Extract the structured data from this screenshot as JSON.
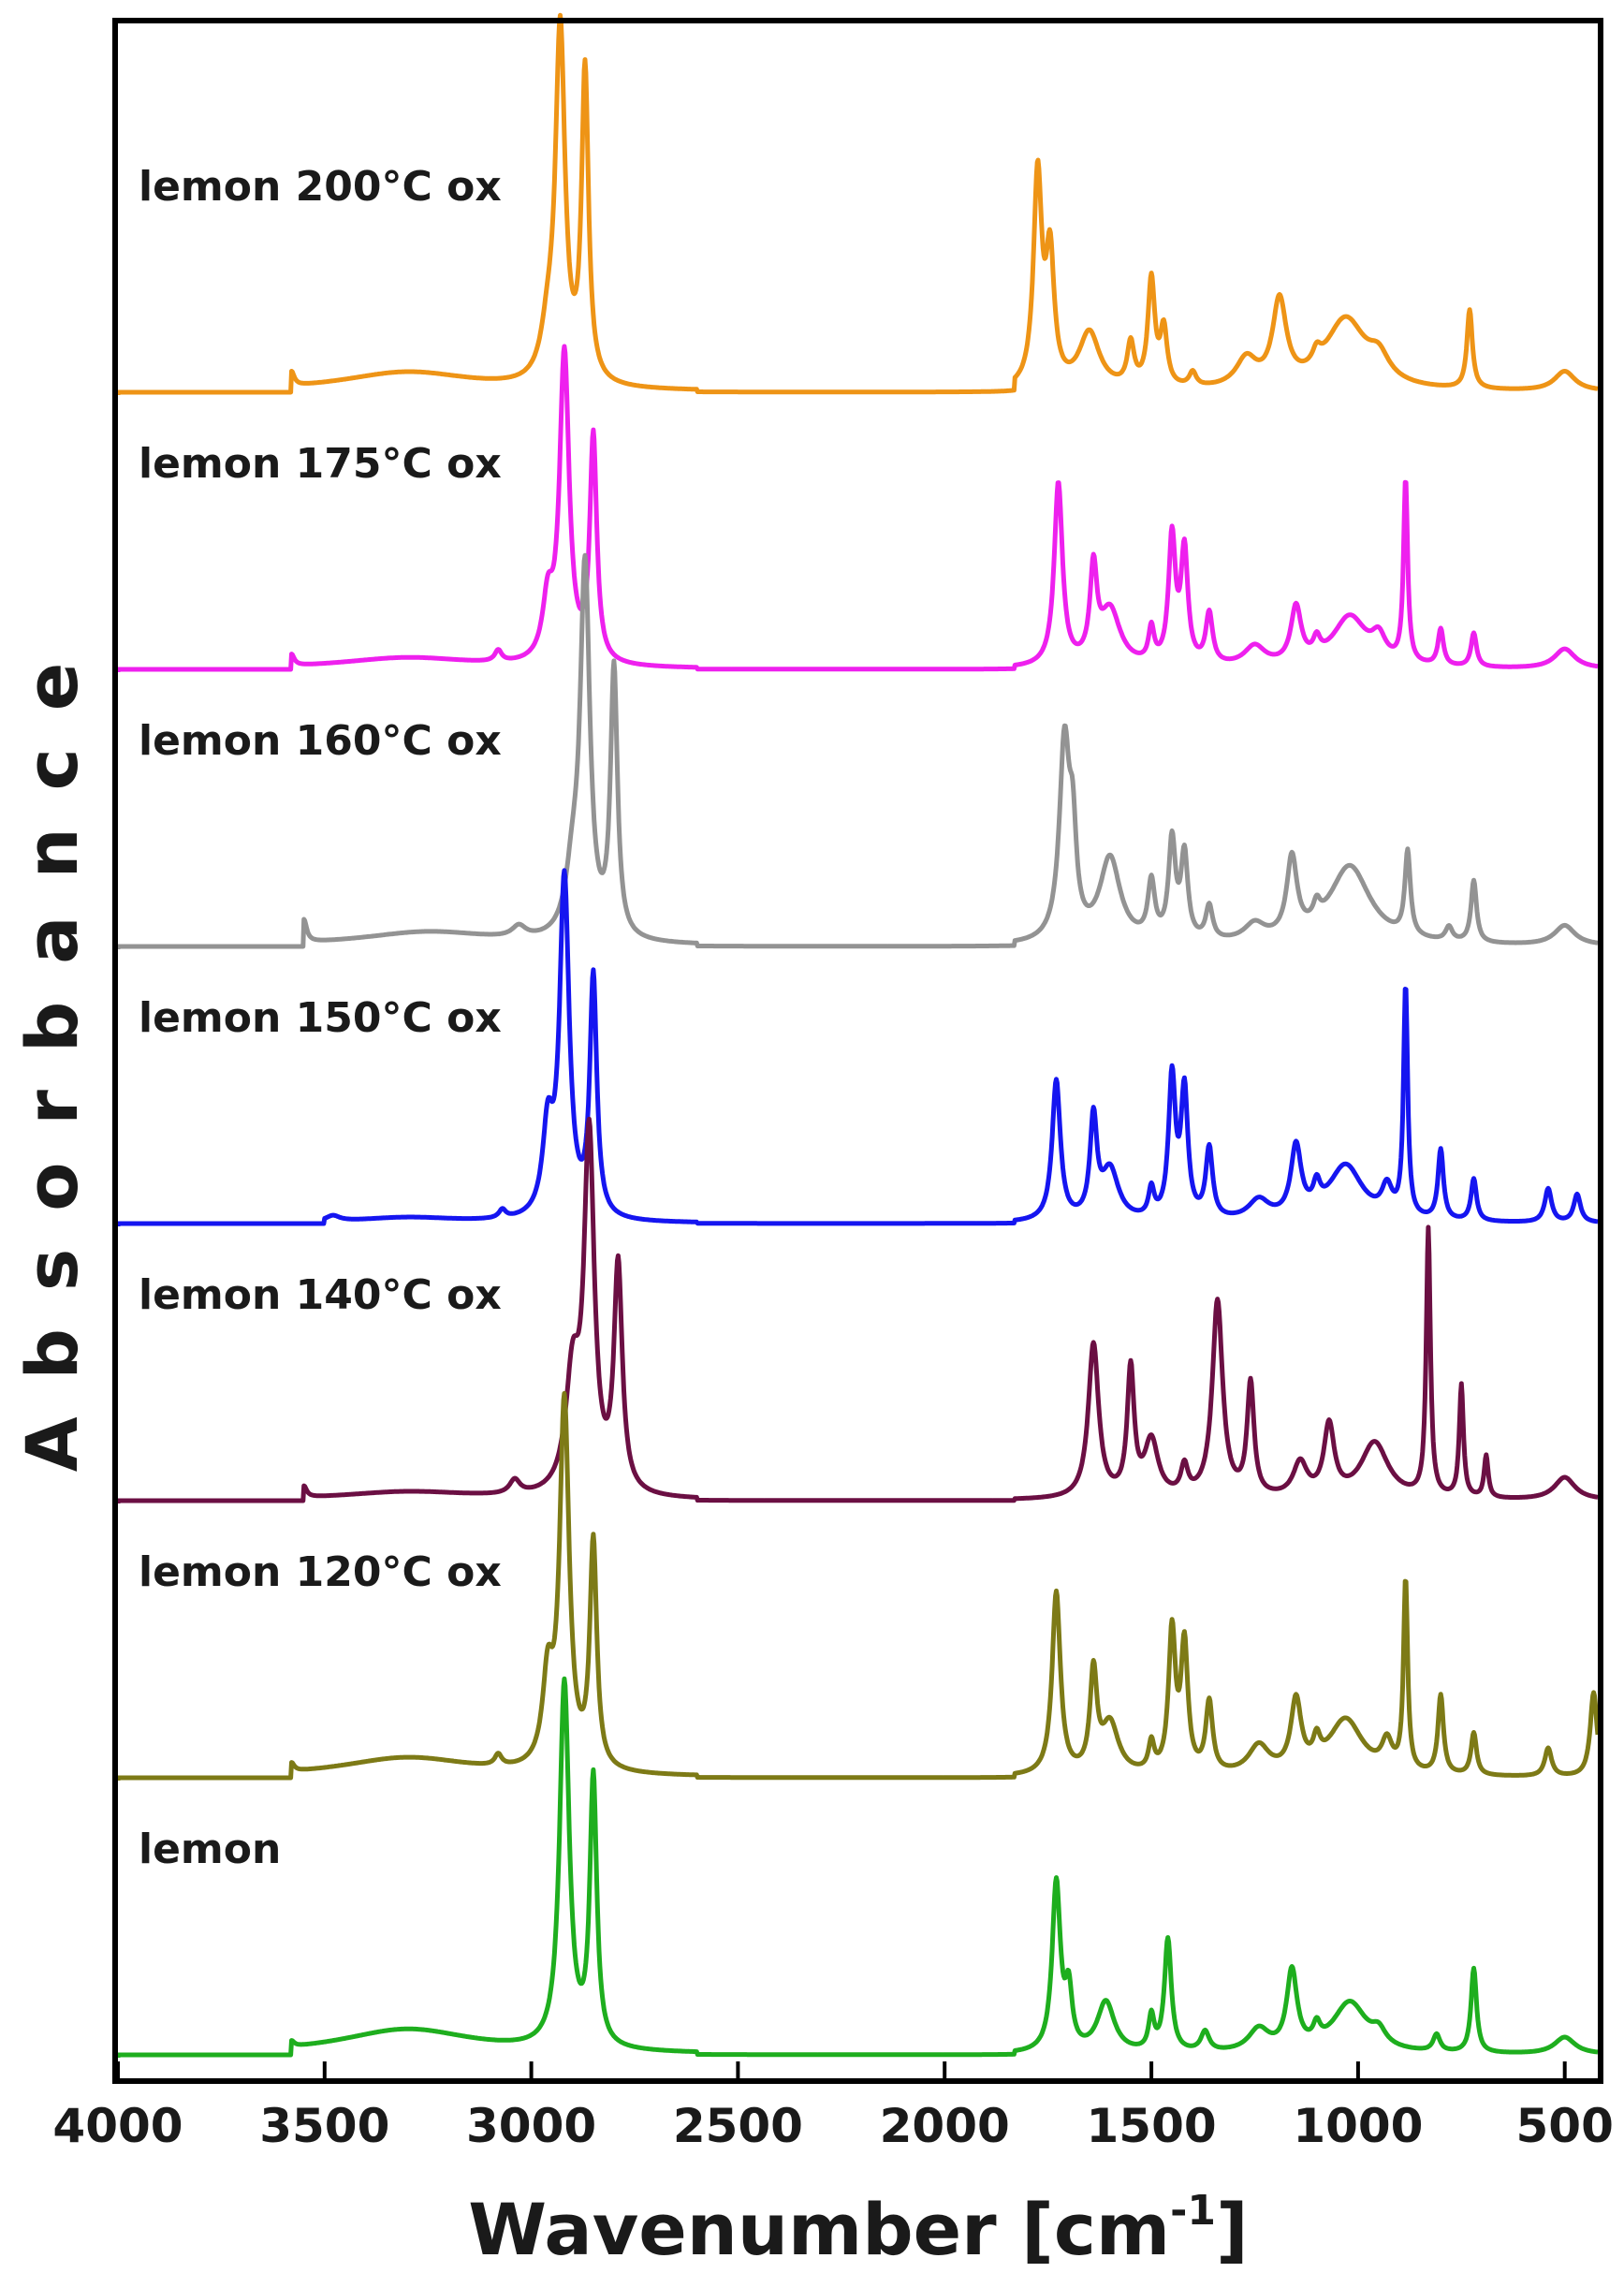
{
  "chart_data": {
    "type": "line",
    "xlabel": "Wavenumber",
    "xlabel_unit_base": "[cm",
    "xlabel_unit_exp": "-1",
    "xlabel_unit_close": "]",
    "ylabel": "Absorbance",
    "xlim": [
      4000,
      420
    ],
    "x_reversed": true,
    "y_ticks_shown": false,
    "grid": false,
    "legend": "inline labels above each trace",
    "xticks": [
      4000,
      3500,
      3000,
      2500,
      2000,
      1500,
      1000,
      500
    ],
    "xtick_labels": [
      "4000",
      "3500",
      "3000",
      "2500",
      "2000",
      "1500",
      "1000",
      "500"
    ],
    "series": [
      {
        "name": "lemon 200°C ox",
        "color": "#EE9416",
        "offset": 6,
        "peaks": [
          [
            3580,
            0.05,
            8
          ],
          [
            3300,
            0.07,
            200
          ],
          [
            2960,
            0.15,
            20
          ],
          [
            2930,
            1.25,
            14
          ],
          [
            2870,
            1.1,
            10
          ],
          [
            1775,
            0.75,
            12
          ],
          [
            1745,
            0.45,
            12
          ],
          [
            1650,
            0.2,
            30
          ],
          [
            1550,
            0.15,
            10
          ],
          [
            1500,
            0.38,
            10
          ],
          [
            1470,
            0.2,
            10
          ],
          [
            1400,
            0.05,
            10
          ],
          [
            1270,
            0.1,
            30
          ],
          [
            1190,
            0.3,
            20
          ],
          [
            1100,
            0.05,
            12
          ],
          [
            1030,
            0.25,
            60
          ],
          [
            950,
            0.08,
            30
          ],
          [
            730,
            0.28,
            8
          ],
          [
            500,
            0.07,
            30
          ]
        ]
      },
      {
        "name": "lemon 175°C ox",
        "color": "#EE20EE",
        "offset": 5,
        "peaks": [
          [
            3580,
            0.04,
            8
          ],
          [
            3300,
            0.04,
            200
          ],
          [
            3080,
            0.04,
            10
          ],
          [
            2960,
            0.2,
            15
          ],
          [
            2920,
            1.1,
            14
          ],
          [
            2850,
            0.8,
            10
          ],
          [
            1725,
            0.65,
            12
          ],
          [
            1640,
            0.32,
            10
          ],
          [
            1600,
            0.2,
            30
          ],
          [
            1500,
            0.12,
            8
          ],
          [
            1450,
            0.45,
            10
          ],
          [
            1420,
            0.4,
            10
          ],
          [
            1360,
            0.18,
            10
          ],
          [
            1250,
            0.07,
            30
          ],
          [
            1150,
            0.2,
            15
          ],
          [
            1100,
            0.06,
            10
          ],
          [
            1020,
            0.18,
            50
          ],
          [
            950,
            0.08,
            20
          ],
          [
            885,
            0.65,
            6
          ],
          [
            800,
            0.13,
            8
          ],
          [
            720,
            0.12,
            8
          ],
          [
            500,
            0.07,
            30
          ]
        ]
      },
      {
        "name": "lemon 160°C ox",
        "color": "#939393",
        "offset": 4,
        "peaks": [
          [
            3550,
            0.08,
            8
          ],
          [
            3250,
            0.05,
            200
          ],
          [
            3030,
            0.04,
            20
          ],
          [
            2900,
            0.2,
            20
          ],
          [
            2870,
            1.3,
            14
          ],
          [
            2800,
            0.95,
            10
          ],
          [
            1710,
            0.7,
            15
          ],
          [
            1690,
            0.3,
            10
          ],
          [
            1600,
            0.3,
            30
          ],
          [
            1500,
            0.2,
            10
          ],
          [
            1450,
            0.35,
            10
          ],
          [
            1420,
            0.3,
            10
          ],
          [
            1360,
            0.12,
            10
          ],
          [
            1250,
            0.06,
            30
          ],
          [
            1160,
            0.28,
            15
          ],
          [
            1100,
            0.06,
            10
          ],
          [
            1020,
            0.28,
            60
          ],
          [
            880,
            0.3,
            8
          ],
          [
            780,
            0.05,
            10
          ],
          [
            720,
            0.22,
            8
          ],
          [
            500,
            0.07,
            30
          ]
        ]
      },
      {
        "name": "lemon 150°C ox",
        "color": "#1515F0",
        "offset": 3,
        "peaks": [
          [
            3480,
            0.02,
            20
          ],
          [
            3300,
            0.02,
            150
          ],
          [
            3070,
            0.03,
            10
          ],
          [
            2960,
            0.3,
            15
          ],
          [
            2920,
            1.2,
            14
          ],
          [
            2850,
            0.85,
            10
          ],
          [
            1730,
            0.5,
            12
          ],
          [
            1640,
            0.35,
            10
          ],
          [
            1600,
            0.18,
            25
          ],
          [
            1500,
            0.1,
            8
          ],
          [
            1450,
            0.5,
            10
          ],
          [
            1420,
            0.45,
            10
          ],
          [
            1360,
            0.25,
            10
          ],
          [
            1240,
            0.07,
            30
          ],
          [
            1150,
            0.25,
            15
          ],
          [
            1100,
            0.08,
            10
          ],
          [
            1030,
            0.2,
            50
          ],
          [
            930,
            0.1,
            15
          ],
          [
            885,
            0.82,
            6
          ],
          [
            800,
            0.25,
            8
          ],
          [
            720,
            0.15,
            8
          ],
          [
            540,
            0.12,
            10
          ],
          [
            470,
            0.1,
            10
          ]
        ]
      },
      {
        "name": "lemon 140°C ox",
        "color": "#6B0F43",
        "offset": 2,
        "peaks": [
          [
            3550,
            0.04,
            8
          ],
          [
            3300,
            0.03,
            200
          ],
          [
            3040,
            0.05,
            15
          ],
          [
            2900,
            0.4,
            20
          ],
          [
            2860,
            1.25,
            15
          ],
          [
            2790,
            0.8,
            12
          ],
          [
            1640,
            0.55,
            15
          ],
          [
            1550,
            0.45,
            10
          ],
          [
            1500,
            0.2,
            20
          ],
          [
            1420,
            0.1,
            10
          ],
          [
            1340,
            0.7,
            15
          ],
          [
            1260,
            0.4,
            10
          ],
          [
            1140,
            0.12,
            20
          ],
          [
            1070,
            0.25,
            15
          ],
          [
            960,
            0.2,
            40
          ],
          [
            830,
            0.95,
            6
          ],
          [
            750,
            0.4,
            6
          ],
          [
            690,
            0.15,
            6
          ],
          [
            500,
            0.08,
            30
          ]
        ]
      },
      {
        "name": "lemon 120°C ox",
        "color": "#7D7A16",
        "offset": 1,
        "peaks": [
          [
            3580,
            0.03,
            8
          ],
          [
            3300,
            0.07,
            200
          ],
          [
            3080,
            0.04,
            10
          ],
          [
            2960,
            0.3,
            15
          ],
          [
            2920,
            1.3,
            14
          ],
          [
            2850,
            0.8,
            10
          ],
          [
            1730,
            0.65,
            12
          ],
          [
            1640,
            0.35,
            10
          ],
          [
            1600,
            0.18,
            25
          ],
          [
            1500,
            0.1,
            8
          ],
          [
            1450,
            0.5,
            10
          ],
          [
            1420,
            0.45,
            10
          ],
          [
            1360,
            0.25,
            10
          ],
          [
            1240,
            0.1,
            30
          ],
          [
            1150,
            0.25,
            15
          ],
          [
            1100,
            0.08,
            10
          ],
          [
            1030,
            0.2,
            50
          ],
          [
            930,
            0.1,
            15
          ],
          [
            885,
            0.68,
            6
          ],
          [
            800,
            0.28,
            8
          ],
          [
            720,
            0.15,
            8
          ],
          [
            540,
            0.1,
            10
          ],
          [
            430,
            0.3,
            10
          ]
        ]
      },
      {
        "name": "lemon",
        "color": "#1EAE1E",
        "offset": 0,
        "peaks": [
          [
            3580,
            0.02,
            8
          ],
          [
            3300,
            0.09,
            200
          ],
          [
            2920,
            1.3,
            14
          ],
          [
            2850,
            0.95,
            10
          ],
          [
            1730,
            0.6,
            12
          ],
          [
            1700,
            0.2,
            10
          ],
          [
            1610,
            0.18,
            25
          ],
          [
            1500,
            0.12,
            8
          ],
          [
            1460,
            0.4,
            10
          ],
          [
            1370,
            0.07,
            12
          ],
          [
            1240,
            0.08,
            30
          ],
          [
            1160,
            0.28,
            15
          ],
          [
            1100,
            0.06,
            10
          ],
          [
            1020,
            0.18,
            50
          ],
          [
            950,
            0.05,
            20
          ],
          [
            810,
            0.06,
            10
          ],
          [
            720,
            0.3,
            8
          ],
          [
            500,
            0.06,
            30
          ]
        ]
      }
    ]
  }
}
